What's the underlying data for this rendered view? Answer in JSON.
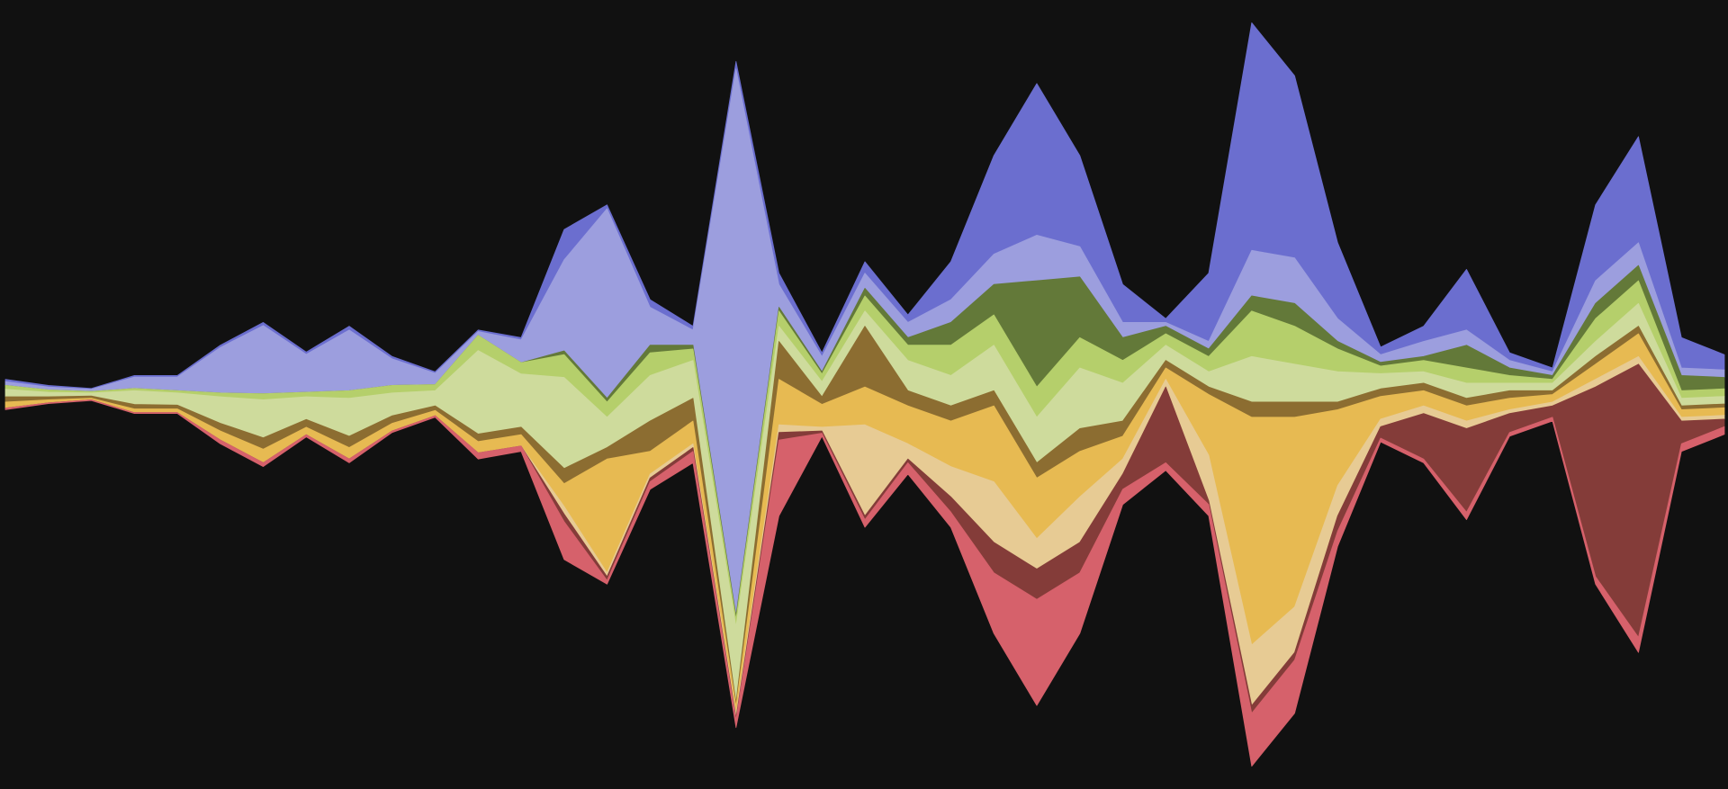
{
  "chart_data": {
    "type": "streamgraph",
    "ylim": [
      -52,
      52
    ],
    "series": [
      {
        "color": "#6b6ecf",
        "values": [
          0.3,
          0.2,
          0.1,
          0.2,
          0.2,
          0.3,
          0.4,
          0.3,
          0.5,
          0.3,
          0.2,
          0.2,
          0.3,
          4,
          0.5,
          1,
          0.5,
          1,
          1.5,
          0.5,
          1.5,
          1,
          5,
          13,
          20,
          12,
          5,
          0.5,
          9,
          30,
          24,
          10,
          1,
          2,
          8,
          1,
          0.5,
          10,
          14,
          4,
          2
        ]
      },
      {
        "color": "#9c9ede",
        "values": [
          0.5,
          0.4,
          0.3,
          1.5,
          1.8,
          6,
          9,
          5,
          8,
          3.5,
          1.5,
          0.5,
          3,
          12,
          25,
          5,
          2,
          72,
          3,
          2,
          2,
          2,
          3,
          4,
          6,
          4,
          2,
          0.5,
          1,
          6,
          6,
          3,
          1,
          2,
          2,
          1,
          0.5,
          3,
          3,
          1,
          1
        ]
      },
      {
        "color": "#637939",
        "values": [
          0,
          0,
          0,
          0,
          0,
          0,
          0,
          0,
          0,
          0,
          0,
          0,
          0,
          0.5,
          0.5,
          1,
          0.5,
          0.5,
          0.5,
          0.3,
          1,
          1,
          3,
          4,
          14,
          8,
          3,
          1,
          1,
          2,
          3,
          1,
          0.5,
          0.5,
          3,
          1,
          0.5,
          2,
          2,
          2,
          1.5
        ]
      },
      {
        "color": "#b5cf6b",
        "values": [
          0.5,
          0.3,
          0.2,
          0.3,
          0.3,
          0.5,
          0.8,
          0.6,
          1,
          1,
          0.8,
          2,
          1.5,
          3,
          2,
          3,
          1.5,
          1,
          2,
          1,
          2,
          2,
          4,
          4,
          4,
          4,
          3,
          1.5,
          2,
          6,
          5,
          3,
          1,
          1.5,
          2,
          1,
          0.5,
          3,
          3,
          1,
          1
        ]
      },
      {
        "color": "#cedb9c",
        "values": [
          1,
          0.6,
          0.4,
          1.8,
          1.6,
          3.5,
          5,
          3,
          5,
          3,
          2,
          11,
          7,
          12,
          4,
          6,
          5,
          10,
          2,
          2,
          2,
          4,
          4,
          6,
          6,
          8,
          5,
          2,
          2,
          6,
          5,
          4,
          2,
          1.5,
          2,
          1,
          1,
          2,
          3,
          1,
          1
        ]
      },
      {
        "color": "#8c6d31",
        "values": [
          0.7,
          0.4,
          0.3,
          0.6,
          0.5,
          1,
          1.5,
          1,
          1.5,
          1,
          0.6,
          1,
          1,
          2,
          1.5,
          4,
          3,
          0.5,
          5,
          1,
          8,
          2,
          2,
          2,
          2,
          3,
          2,
          1,
          1,
          2,
          2,
          1,
          1,
          1,
          1,
          1,
          0.5,
          1,
          1,
          0.5,
          0.5
        ]
      },
      {
        "color": "#e7ba52",
        "values": [
          0.8,
          0.4,
          0.2,
          0.5,
          0.5,
          1.2,
          1.8,
          1,
          1.5,
          1,
          0.7,
          1.5,
          1.5,
          3,
          15,
          3,
          3,
          1,
          6,
          3,
          5,
          5,
          6,
          10,
          8,
          6,
          3,
          1.5,
          8,
          30,
          25,
          10,
          3,
          2,
          2,
          1.5,
          1,
          2,
          3,
          1,
          1
        ]
      },
      {
        "color": "#e7cb94",
        "values": [
          0,
          0,
          0,
          0,
          0,
          0,
          0,
          0,
          0,
          0,
          0,
          0,
          0,
          1,
          0.5,
          0.5,
          0.5,
          0.5,
          1,
          0.5,
          12,
          2,
          4,
          8,
          4,
          6,
          2,
          1,
          6,
          8,
          6,
          4,
          1,
          1,
          1,
          0.5,
          0.5,
          1,
          1,
          0.5,
          0.5
        ]
      },
      {
        "color": "#843c39",
        "values": [
          0,
          0,
          0,
          0,
          0,
          0,
          0,
          0,
          0,
          0,
          0,
          0,
          0,
          1,
          0.5,
          0.5,
          0.5,
          0.3,
          1,
          0.3,
          0.5,
          0.5,
          2,
          4,
          4,
          4,
          2,
          10,
          0.5,
          1,
          1,
          2,
          1.5,
          6,
          11,
          2.5,
          1.5,
          25,
          36,
          3,
          1
        ]
      },
      {
        "color": "#d6616b",
        "values": [
          0.2,
          0.1,
          0.1,
          0.1,
          0.1,
          0.5,
          0.5,
          0.3,
          0.5,
          0.2,
          0.2,
          0.8,
          0.7,
          5,
          0.5,
          1,
          1.5,
          1,
          10,
          0.4,
          1,
          1.5,
          2,
          8,
          14,
          8,
          2,
          1,
          1.5,
          7,
          7,
          2,
          0.5,
          0.5,
          1,
          0.5,
          0.5,
          1,
          2,
          1,
          1
        ]
      }
    ]
  }
}
